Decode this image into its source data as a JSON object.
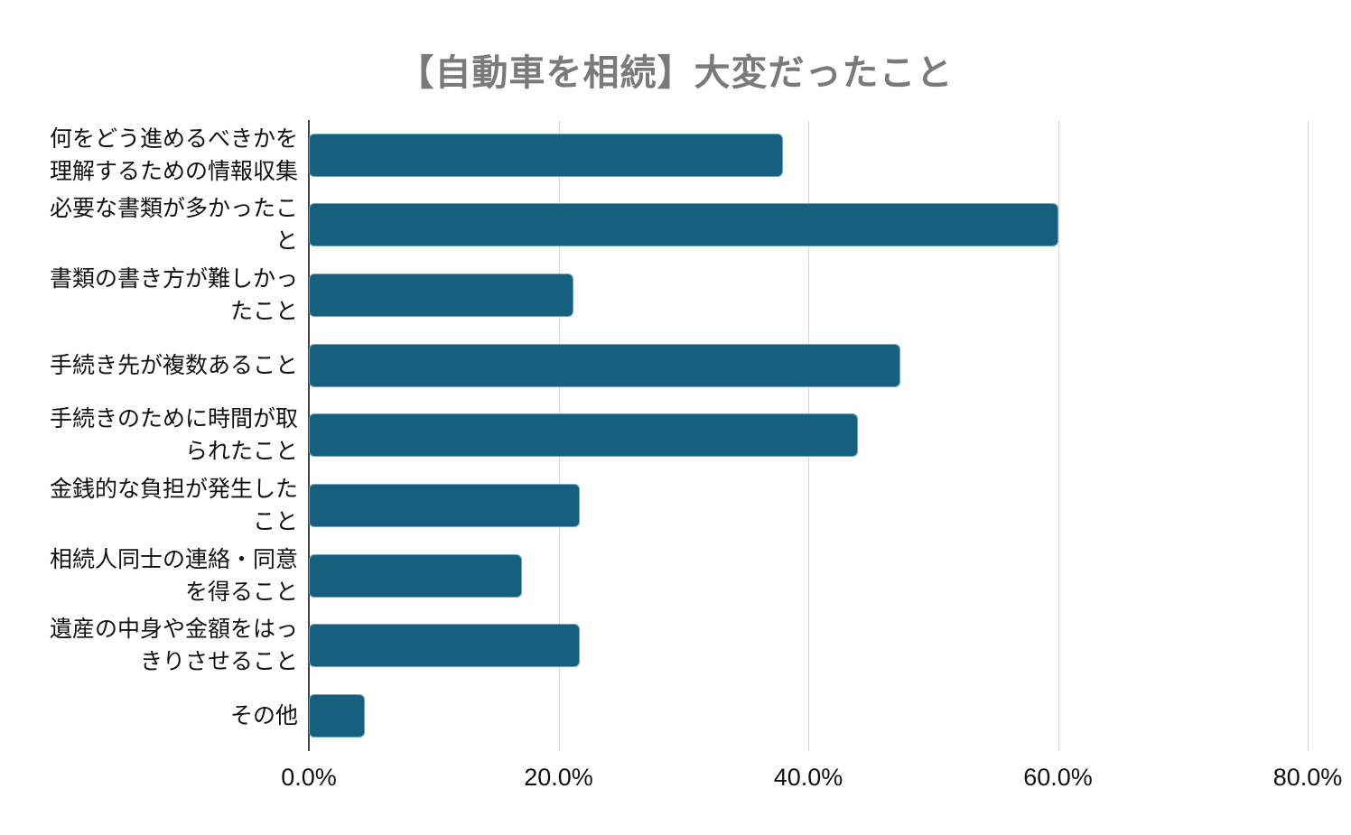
{
  "page": {
    "background": "#ffffff"
  },
  "header": {
    "title": "【自動車を相続】大変だったこと",
    "title_color": "#7a7a7a"
  },
  "chart_data": {
    "type": "bar",
    "orientation": "horizontal",
    "title": "【自動車を相続】大変だったこと",
    "categories": [
      "何をどう進めるべきかを理解するための情報収集",
      "必要な書類が多かったこと",
      "書類の書き方が難しかったこと",
      "手続き先が複数あること",
      "手続きのために時間が取られたこと",
      "金銭的な負担が発生したこと",
      "相続人同士の連絡・同意を得ること",
      "遺産の中身や金額をはっきりさせること",
      "その他"
    ],
    "values": [
      38.0,
      60.0,
      21.2,
      47.4,
      44.0,
      21.7,
      17.1,
      21.7,
      4.5
    ],
    "x_ticks": [
      "0.0%",
      "20.0%",
      "40.0%",
      "60.0%",
      "80.0%"
    ],
    "x_tick_values": [
      0,
      20,
      40,
      60,
      80
    ],
    "xlim": [
      0,
      80
    ],
    "ylabel": "",
    "xlabel": "",
    "grid": true,
    "legend_position": "none",
    "bar_color": "#175f7e",
    "bar_border_color": "#6fa5bf",
    "grid_color": "#d9d9d9",
    "axis_color": "#424242",
    "tick_color": "#111111",
    "label_color": "#111111"
  }
}
